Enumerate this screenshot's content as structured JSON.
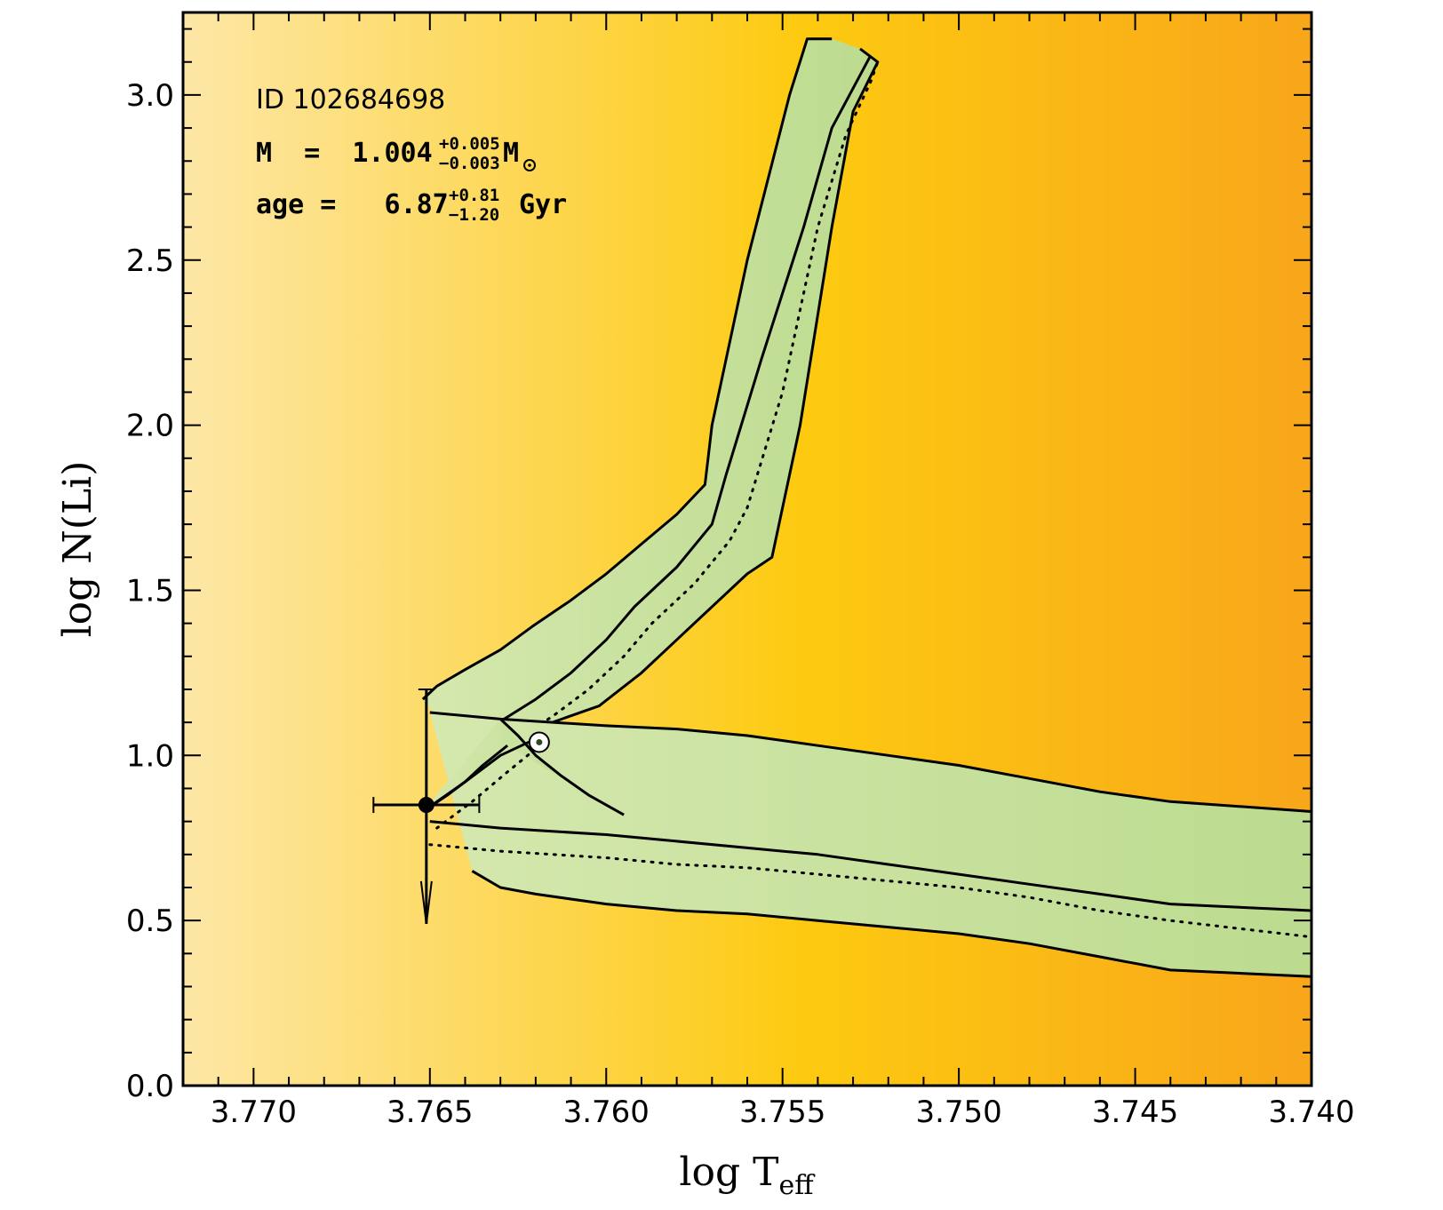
{
  "chart_data": {
    "type": "line",
    "title": "",
    "xlabel": "log T",
    "xlabel_sub": "eff",
    "ylabel": "log N(Li)",
    "xlim": [
      3.772,
      3.74
    ],
    "ylim": [
      0.0,
      3.25
    ],
    "x_reversed": true,
    "xticks": [
      3.77,
      3.765,
      3.76,
      3.755,
      3.75,
      3.745,
      3.74
    ],
    "xtick_labels": [
      "3.770",
      "3.765",
      "3.760",
      "3.755",
      "3.750",
      "3.745",
      "3.740"
    ],
    "yticks": [
      0.0,
      0.5,
      1.0,
      1.5,
      2.0,
      2.5,
      3.0
    ],
    "ytick_labels": [
      "0.0",
      "0.5",
      "1.0",
      "1.5",
      "2.0",
      "2.5",
      "3.0"
    ],
    "background_gradient": [
      "#fde7a6",
      "#fdca10",
      "#f8a61a"
    ],
    "band_color": "#c9e2a6",
    "annotations": {
      "star_id": "ID 102684698",
      "mass_prefix": "M  =  1.004",
      "mass_up": "+0.005",
      "mass_down": "−0.003",
      "mass_unit": "M",
      "age_prefix": "age =   6.87",
      "age_up": "+0.81",
      "age_down": "−1.20",
      "age_unit": "Gyr"
    },
    "star_point": {
      "name": "observed star",
      "x": 3.7651,
      "y": 0.85,
      "x_err_minus": 0.0015,
      "x_err_plus": 0.0015,
      "y_upper": 1.2,
      "y_lower": 0.49,
      "upper_limit": true
    },
    "sun_marker": {
      "name": "Sun",
      "x": 3.7619,
      "y": 1.04
    },
    "series": [
      {
        "kind": "band",
        "upper": [
          [
            3.7652,
            1.17
          ],
          [
            3.7648,
            1.21
          ],
          [
            3.764,
            1.26
          ],
          [
            3.763,
            1.32
          ],
          [
            3.7621,
            1.39
          ],
          [
            3.761,
            1.47
          ],
          [
            3.76,
            1.55
          ],
          [
            3.759,
            1.64
          ],
          [
            3.758,
            1.73
          ],
          [
            3.7572,
            1.82
          ],
          [
            3.757,
            2.0
          ],
          [
            3.756,
            2.5
          ],
          [
            3.7548,
            3.0
          ],
          [
            3.7543,
            3.17
          ],
          [
            3.7536,
            3.17
          ]
        ],
        "lower": [
          [
            3.7648,
            1.12
          ],
          [
            3.7635,
            1.11
          ],
          [
            3.7625,
            1.1
          ],
          [
            3.7618,
            1.09
          ],
          [
            3.7602,
            1.15
          ],
          [
            3.759,
            1.25
          ],
          [
            3.758,
            1.35
          ],
          [
            3.757,
            1.45
          ],
          [
            3.756,
            1.55
          ],
          [
            3.7553,
            1.6
          ],
          [
            3.7545,
            2.0
          ],
          [
            3.7536,
            2.6
          ],
          [
            3.753,
            2.95
          ],
          [
            3.7523,
            3.1
          ],
          [
            3.7528,
            3.14
          ]
        ],
        "median": [
          [
            3.7632,
            1.09
          ],
          [
            3.762,
            1.17
          ],
          [
            3.761,
            1.25
          ],
          [
            3.76,
            1.35
          ],
          [
            3.7592,
            1.45
          ],
          [
            3.758,
            1.57
          ],
          [
            3.757,
            1.7
          ],
          [
            3.7566,
            1.85
          ],
          [
            3.7556,
            2.2
          ],
          [
            3.7544,
            2.6
          ],
          [
            3.7536,
            2.9
          ],
          [
            3.7528,
            3.06
          ],
          [
            3.7525,
            3.12
          ]
        ],
        "mean": [
          [
            3.7625,
            1.05
          ],
          [
            3.7615,
            1.12
          ],
          [
            3.7605,
            1.2
          ],
          [
            3.7595,
            1.3
          ],
          [
            3.7587,
            1.4
          ],
          [
            3.7575,
            1.52
          ],
          [
            3.7565,
            1.65
          ],
          [
            3.756,
            1.75
          ],
          [
            3.755,
            2.1
          ],
          [
            3.754,
            2.6
          ],
          [
            3.7532,
            2.88
          ],
          [
            3.7525,
            3.04
          ],
          [
            3.7523,
            3.1
          ]
        ]
      },
      {
        "kind": "band",
        "upper": [
          [
            3.765,
            1.13
          ],
          [
            3.763,
            1.11
          ],
          [
            3.76,
            1.09
          ],
          [
            3.758,
            1.08
          ],
          [
            3.756,
            1.06
          ],
          [
            3.754,
            1.03
          ],
          [
            3.752,
            1.0
          ],
          [
            3.75,
            0.97
          ],
          [
            3.748,
            0.93
          ],
          [
            3.746,
            0.89
          ],
          [
            3.744,
            0.86
          ],
          [
            3.74,
            0.83
          ]
        ],
        "lower": [
          [
            3.7638,
            0.65
          ],
          [
            3.763,
            0.6
          ],
          [
            3.762,
            0.58
          ],
          [
            3.76,
            0.55
          ],
          [
            3.758,
            0.53
          ],
          [
            3.756,
            0.52
          ],
          [
            3.754,
            0.5
          ],
          [
            3.752,
            0.48
          ],
          [
            3.75,
            0.46
          ],
          [
            3.748,
            0.43
          ],
          [
            3.746,
            0.39
          ],
          [
            3.744,
            0.35
          ],
          [
            3.74,
            0.33
          ]
        ],
        "median": [
          [
            3.765,
            0.8
          ],
          [
            3.763,
            0.78
          ],
          [
            3.76,
            0.76
          ],
          [
            3.758,
            0.74
          ],
          [
            3.756,
            0.72
          ],
          [
            3.754,
            0.7
          ],
          [
            3.752,
            0.67
          ],
          [
            3.75,
            0.64
          ],
          [
            3.748,
            0.61
          ],
          [
            3.746,
            0.58
          ],
          [
            3.744,
            0.55
          ],
          [
            3.74,
            0.53
          ]
        ],
        "mean": [
          [
            3.765,
            0.73
          ],
          [
            3.763,
            0.71
          ],
          [
            3.76,
            0.69
          ],
          [
            3.758,
            0.67
          ],
          [
            3.756,
            0.66
          ],
          [
            3.754,
            0.64
          ],
          [
            3.752,
            0.62
          ],
          [
            3.75,
            0.6
          ],
          [
            3.748,
            0.57
          ],
          [
            3.746,
            0.53
          ],
          [
            3.744,
            0.5
          ],
          [
            3.74,
            0.45
          ]
        ]
      },
      {
        "kind": "band",
        "upper": [
          [
            3.763,
            1.11
          ],
          [
            3.7625,
            1.06
          ],
          [
            3.762,
            1.0
          ],
          [
            3.7613,
            0.94
          ],
          [
            3.7605,
            0.88
          ],
          [
            3.7595,
            0.82
          ]
        ],
        "lower": [
          [
            3.7652,
            0.83
          ],
          [
            3.7645,
            0.88
          ],
          [
            3.764,
            0.92
          ],
          [
            3.7635,
            0.97
          ],
          [
            3.7628,
            1.03
          ]
        ],
        "median": [
          [
            3.7652,
            0.83
          ],
          [
            3.764,
            0.92
          ],
          [
            3.763,
            1.0
          ],
          [
            3.762,
            1.05
          ]
        ],
        "mean": [
          [
            3.7648,
            0.78
          ],
          [
            3.7638,
            0.86
          ],
          [
            3.7628,
            0.95
          ],
          [
            3.762,
            1.02
          ]
        ]
      }
    ]
  }
}
